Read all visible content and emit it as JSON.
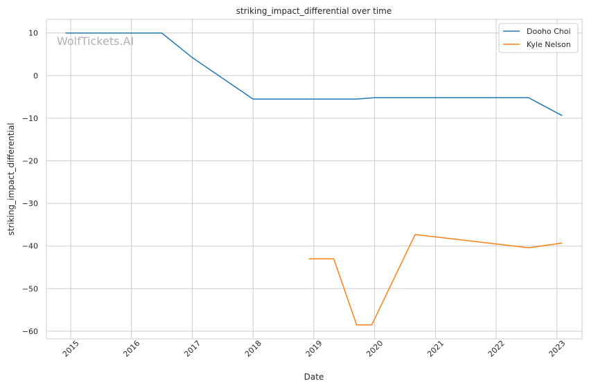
{
  "watermark": "WolfTickets.AI",
  "chart_data": {
    "type": "line",
    "title": "striking_impact_differential over time",
    "xlabel": "Date",
    "ylabel": "striking_impact_differential",
    "xlim": [
      "2014-08-08",
      "2023-06-01"
    ],
    "ylim": [
      -61.8,
      13.2
    ],
    "x_ticks": [
      "2015",
      "2016",
      "2017",
      "2018",
      "2019",
      "2020",
      "2021",
      "2022",
      "2023"
    ],
    "y_ticks": [
      10,
      0,
      -10,
      -20,
      -30,
      -40,
      -50,
      -60
    ],
    "y_tick_labels": [
      "10",
      "0",
      "−10",
      "−20",
      "−30",
      "−40",
      "−50",
      "−60"
    ],
    "grid": true,
    "legend_position": "top-right",
    "series": [
      {
        "name": "Dooho Choi",
        "color": "#1f77b4",
        "points": [
          {
            "x": "2014-12-01",
            "y": 10
          },
          {
            "x": "2016-07-01",
            "y": 10
          },
          {
            "x": "2017-01-01",
            "y": 4.2
          },
          {
            "x": "2018-01-01",
            "y": -5.5
          },
          {
            "x": "2019-09-15",
            "y": -5.5
          },
          {
            "x": "2020-01-01",
            "y": -5.2
          },
          {
            "x": "2022-07-15",
            "y": -5.2
          },
          {
            "x": "2023-02-01",
            "y": -9.4
          }
        ]
      },
      {
        "name": "Kyle Nelson",
        "color": "#ff7f0e",
        "points": [
          {
            "x": "2018-12-01",
            "y": -43
          },
          {
            "x": "2019-05-01",
            "y": -43
          },
          {
            "x": "2019-09-15",
            "y": -58.5
          },
          {
            "x": "2019-12-15",
            "y": -58.5
          },
          {
            "x": "2020-09-01",
            "y": -37.3
          },
          {
            "x": "2022-07-15",
            "y": -40.4
          },
          {
            "x": "2023-02-01",
            "y": -39.3
          }
        ]
      }
    ]
  }
}
